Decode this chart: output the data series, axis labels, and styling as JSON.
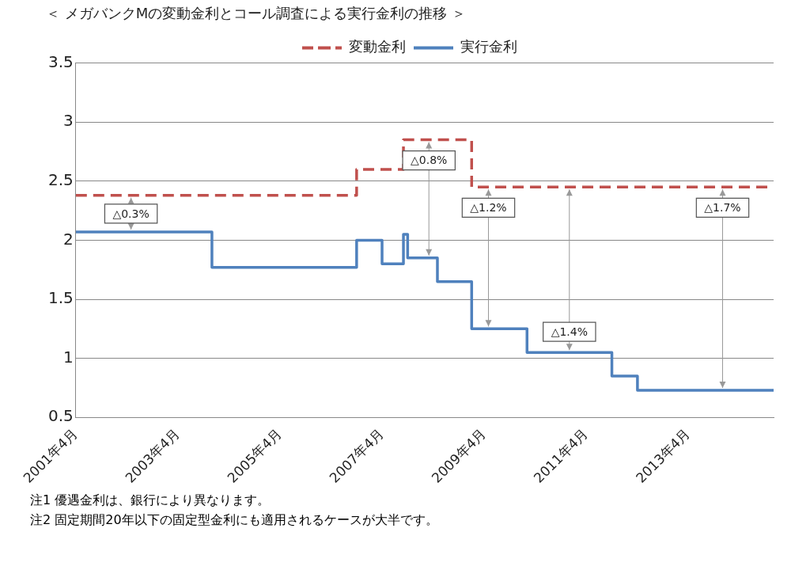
{
  "chart_data": {
    "type": "step",
    "title": "＜ メガバンクMの変動金利とコール調査による実行金利の推移 ＞",
    "xlim": [
      "2001-04",
      "2014-12"
    ],
    "xticks": [
      {
        "value": "2001-04",
        "label": "2001年4月"
      },
      {
        "value": "2003-04",
        "label": "2003年4月"
      },
      {
        "value": "2005-04",
        "label": "2005年4月"
      },
      {
        "value": "2007-04",
        "label": "2007年4月"
      },
      {
        "value": "2009-04",
        "label": "2009年4月"
      },
      {
        "value": "2011-04",
        "label": "2011年4月"
      },
      {
        "value": "2013-04",
        "label": "2013年4月"
      }
    ],
    "ylim": [
      0.5,
      3.5
    ],
    "yticks": [
      0.5,
      1,
      1.5,
      2,
      2.5,
      3,
      3.5
    ],
    "grid": "y",
    "legend": "top",
    "series": [
      {
        "name": "変動金利",
        "color": "#c0504d",
        "line_style": "dashed",
        "x": [
          "2001-04",
          "2006-10",
          "2007-09",
          "2009-01",
          "2014-12"
        ],
        "values": [
          2.38,
          2.6,
          2.85,
          2.45,
          2.45
        ]
      },
      {
        "name": "実行金利",
        "color": "#4f81bd",
        "line_style": "solid",
        "x": [
          "2001-04",
          "2003-12",
          "2006-10",
          "2007-04",
          "2007-09",
          "2007-10",
          "2007-11",
          "2008-05",
          "2009-01",
          "2010-02",
          "2011-10",
          "2012-04",
          "2014-12"
        ],
        "values": [
          2.07,
          1.77,
          2.0,
          1.8,
          2.05,
          1.85,
          1.85,
          1.65,
          1.25,
          1.05,
          0.85,
          0.73,
          0.73
        ]
      }
    ],
    "annotations": [
      {
        "text": "△0.3%",
        "x": "2002-05",
        "y": 2.07
      },
      {
        "text": "△0.8%",
        "x": "2008-03",
        "y": 2.85
      },
      {
        "text": "△1.2%",
        "x": "2009-05",
        "y": 2.45
      },
      {
        "text": "△1.4%",
        "x": "2010-12",
        "y": 1.05
      },
      {
        "text": "△1.7%",
        "x": "2013-12",
        "y": 2.45
      },
      "注1  優遇金利は、銀行により異なります。",
      "注2  固定期間20年以下の固定型金利にも適用されるケースが大半です。"
    ]
  }
}
